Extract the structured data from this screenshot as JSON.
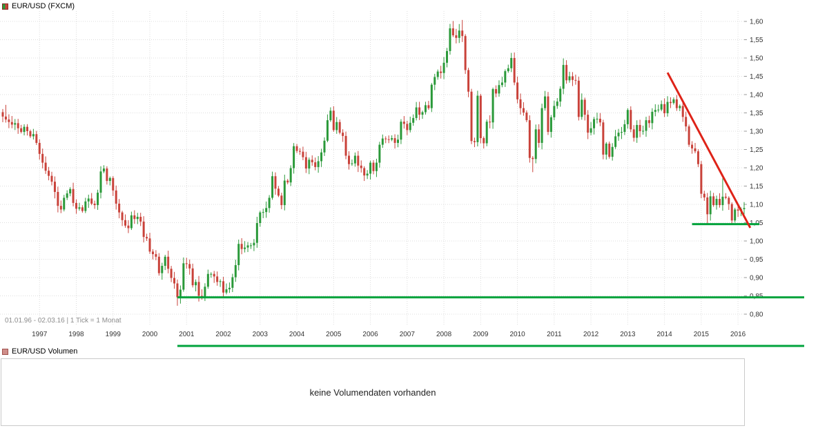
{
  "header": {
    "title": "EUR/USD (FXCM)"
  },
  "footer": {
    "range_info": "01.01.96 - 02.03.16  | 1 Tick = 1 Monat"
  },
  "volume_panel": {
    "legend": "EUR/USD Volumen",
    "message": "keine Volumendaten vorhanden"
  },
  "chart_data": {
    "type": "candlestick",
    "title": "EUR/USD (FXCM)",
    "timeframe": "1 Tick = 1 Monat",
    "date_range": "01.01.96 - 02.03.16",
    "grid": true,
    "legend_position": "top-left",
    "y_axis_side": "right",
    "ylim": [
      0.78,
      1.625
    ],
    "y_ticks": [
      1.6,
      1.55,
      1.5,
      1.45,
      1.4,
      1.35,
      1.3,
      1.25,
      1.2,
      1.15,
      1.1,
      1.05,
      1.0,
      0.95,
      0.9,
      0.85,
      0.8
    ],
    "y_tick_labels": [
      "1,60",
      "1,55",
      "1,50",
      "1,45",
      "1,40",
      "1,35",
      "1,30",
      "1,25",
      "1,20",
      "1,15",
      "1,10",
      "1,05",
      "1,00",
      "0,95",
      "0,90",
      "0,85",
      "0,80"
    ],
    "x_tick_labels": [
      "1997",
      "1998",
      "1999",
      "2000",
      "2001",
      "2002",
      "2003",
      "2004",
      "2005",
      "2006",
      "2007",
      "2008",
      "2009",
      "2010",
      "2011",
      "2012",
      "2013",
      "2014",
      "2015",
      "2016"
    ],
    "start": "1996-01",
    "first_open": 1.352,
    "monthly_closes": {
      "1996": [
        1.34,
        1.332,
        1.325,
        1.318,
        1.322,
        1.308,
        1.298,
        1.312,
        1.3,
        1.286,
        1.292,
        1.268
      ],
      "1997": [
        1.238,
        1.214,
        1.192,
        1.178,
        1.162,
        1.134,
        1.096,
        1.086,
        1.118,
        1.13,
        1.142,
        1.104
      ],
      "1998": [
        1.088,
        1.092,
        1.082,
        1.108,
        1.116,
        1.102,
        1.098,
        1.132,
        1.19,
        1.198,
        1.164,
        1.172
      ],
      "1999": [
        1.138,
        1.102,
        1.078,
        1.057,
        1.042,
        1.035,
        1.07,
        1.06,
        1.066,
        1.053,
        1.011,
        1.007
      ],
      "2000": [
        0.971,
        0.964,
        0.957,
        0.912,
        0.932,
        0.957,
        0.924,
        0.899,
        0.884,
        0.846,
        0.867,
        0.939
      ],
      "2001": [
        0.937,
        0.925,
        0.879,
        0.888,
        0.85,
        0.847,
        0.875,
        0.91,
        0.91,
        0.903,
        0.888,
        0.89
      ],
      "2002": [
        0.859,
        0.868,
        0.872,
        0.901,
        0.934,
        0.992,
        0.978,
        0.982,
        0.988,
        0.988,
        0.995,
        1.049
      ],
      "2003": [
        1.078,
        1.079,
        1.09,
        1.118,
        1.177,
        1.143,
        1.124,
        1.098,
        1.165,
        1.16,
        1.199,
        1.259
      ],
      "2004": [
        1.246,
        1.244,
        1.229,
        1.198,
        1.222,
        1.215,
        1.202,
        1.218,
        1.242,
        1.274,
        1.33,
        1.356
      ],
      "2005": [
        1.303,
        1.325,
        1.296,
        1.287,
        1.233,
        1.21,
        1.212,
        1.233,
        1.206,
        1.199,
        1.179,
        1.184
      ],
      "2006": [
        1.214,
        1.191,
        1.214,
        1.263,
        1.28,
        1.278,
        1.277,
        1.281,
        1.268,
        1.277,
        1.326,
        1.32
      ],
      "2007": [
        1.303,
        1.323,
        1.336,
        1.365,
        1.345,
        1.352,
        1.371,
        1.363,
        1.427,
        1.448,
        1.463,
        1.459
      ],
      "2008": [
        1.487,
        1.519,
        1.581,
        1.562,
        1.555,
        1.575,
        1.56,
        1.467,
        1.408,
        1.273,
        1.27,
        1.397
      ],
      "2009": [
        1.281,
        1.267,
        1.326,
        1.324,
        1.415,
        1.403,
        1.426,
        1.433,
        1.464,
        1.472,
        1.5,
        1.433
      ],
      "2010": [
        1.387,
        1.363,
        1.351,
        1.33,
        1.227,
        1.224,
        1.305,
        1.268,
        1.363,
        1.395,
        1.298,
        1.338
      ],
      "2011": [
        1.369,
        1.381,
        1.416,
        1.481,
        1.439,
        1.45,
        1.44,
        1.438,
        1.339,
        1.386,
        1.345,
        1.296
      ],
      "2012": [
        1.308,
        1.333,
        1.334,
        1.324,
        1.236,
        1.266,
        1.23,
        1.257,
        1.286,
        1.296,
        1.298,
        1.319
      ],
      "2013": [
        1.358,
        1.305,
        1.282,
        1.317,
        1.3,
        1.301,
        1.33,
        1.322,
        1.353,
        1.358,
        1.359,
        1.374
      ],
      "2014": [
        1.349,
        1.38,
        1.377,
        1.387,
        1.363,
        1.369,
        1.339,
        1.313,
        1.263,
        1.253,
        1.245,
        1.21
      ],
      "2015": [
        1.129,
        1.119,
        1.073,
        1.122,
        1.098,
        1.115,
        1.098,
        1.121,
        1.118,
        1.101,
        1.056,
        1.086
      ],
      "2016": [
        1.083,
        1.087,
        1.09
      ]
    },
    "wick_extremes": {
      "1996-02": {
        "high": 1.372
      },
      "1999-12": {
        "low": 1.0
      },
      "2000-10": {
        "low": 0.823
      },
      "2001-07": {
        "low": 0.836
      },
      "2005-11": {
        "low": 1.164
      },
      "2008-04": {
        "high": 1.601
      },
      "2008-07": {
        "high": 1.604
      },
      "2009-11": {
        "high": 1.514
      },
      "2010-06": {
        "low": 1.188
      },
      "2011-05": {
        "high": 1.494
      },
      "2014-05": {
        "high": 1.399
      },
      "2015-03": {
        "low": 1.046
      },
      "2015-08": {
        "high": 1.171
      }
    },
    "annotations": [
      {
        "kind": "hline",
        "price": 0.846,
        "from": "2000-10",
        "to_x": "right-margin",
        "label": "support-0.85"
      },
      {
        "kind": "hline",
        "price": 1.046,
        "from": "2014-10",
        "to_x": "past-axis",
        "label": "support-1.05"
      },
      {
        "kind": "trendline",
        "from": {
          "month": "2014-02",
          "price": 1.46
        },
        "to": {
          "month": "2016-05",
          "price": 1.036
        },
        "label": "downtrend-line"
      },
      {
        "kind": "hline-below-axis",
        "from": "2000-10",
        "label": "line-below-axis"
      }
    ],
    "colors": {
      "up": "#2a9939",
      "down": "#c9423a",
      "grid": "#dcdcdc",
      "axis_text": "#333333",
      "trendline": "#de2318",
      "support": "#00a33c",
      "volume_legend": "#cf8e8a"
    }
  }
}
